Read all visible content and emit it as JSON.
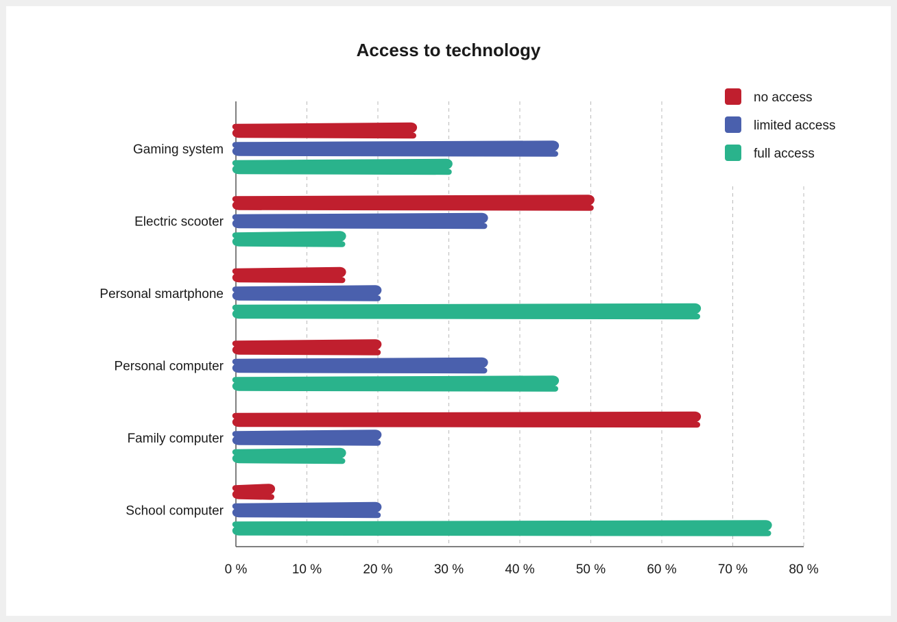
{
  "chart_data": {
    "type": "bar",
    "orientation": "horizontal",
    "title": "Access to technology",
    "categories": [
      "Gaming system",
      "Electric scooter",
      "Personal smartphone",
      "Personal computer",
      "Family computer",
      "School computer"
    ],
    "series": [
      {
        "name": "no access",
        "color": "#c01f2e",
        "values": [
          25,
          50,
          15,
          20,
          65,
          5
        ]
      },
      {
        "name": "limited access",
        "color": "#4a60ad",
        "values": [
          45,
          35,
          20,
          35,
          20,
          20
        ]
      },
      {
        "name": "full access",
        "color": "#2ab38c",
        "values": [
          30,
          15,
          65,
          45,
          15,
          75
        ]
      }
    ],
    "x_ticks": [
      "0 %",
      "10 %",
      "20 %",
      "30 %",
      "40 %",
      "50 %",
      "60 %",
      "70 %",
      "80 %"
    ],
    "xlim": [
      0,
      80
    ],
    "grid": "vertical dashed",
    "legend_position": "top-right",
    "style": "hand-drawn scribble bars"
  }
}
